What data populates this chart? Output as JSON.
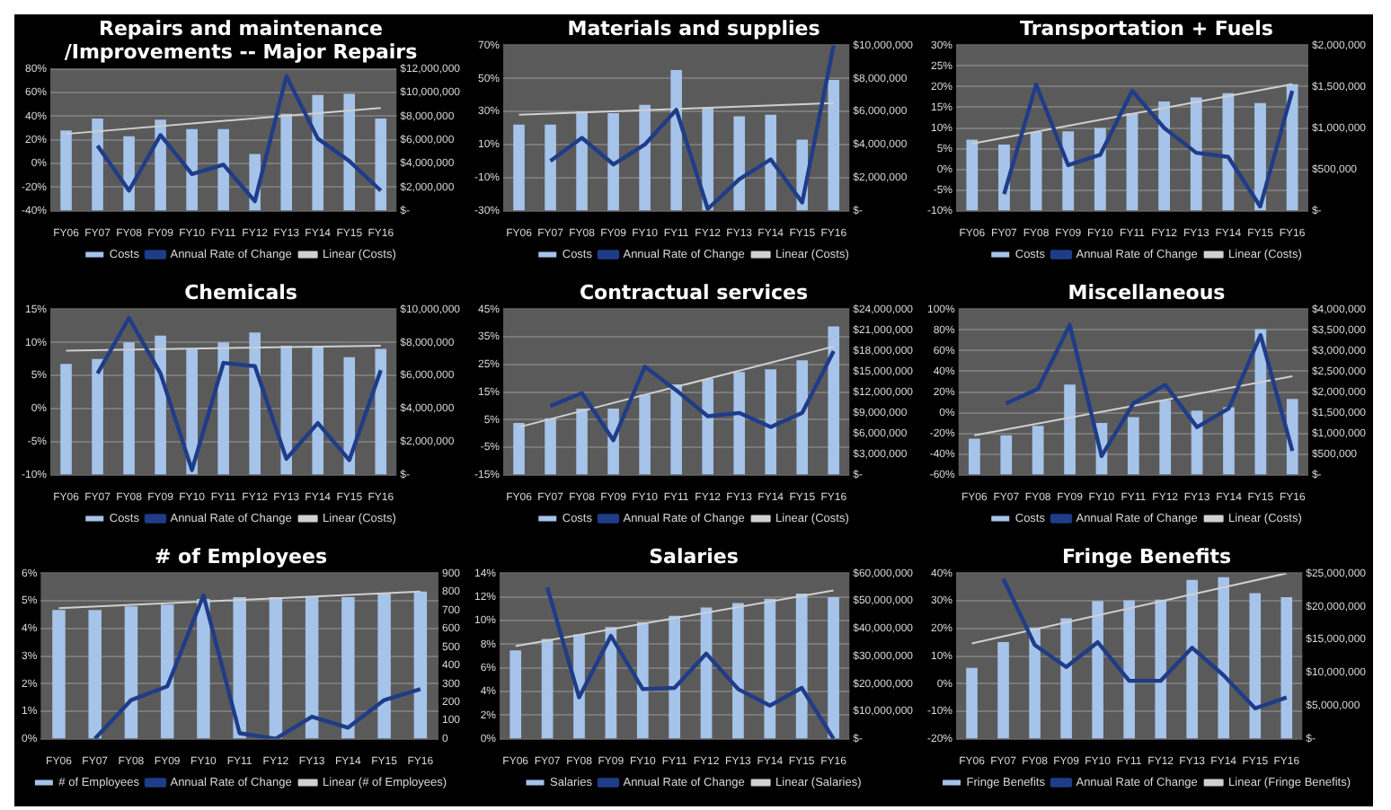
{
  "chart_data": [
    {
      "type": "bar",
      "title": "Repairs and maintenance\n/Improvements -- Major Repairs",
      "categories": [
        "FY06",
        "FY07",
        "FY08",
        "FY09",
        "FY10",
        "FY11",
        "FY12",
        "FY13",
        "FY14",
        "FY15",
        "FY16"
      ],
      "series": [
        {
          "name": "Costs",
          "axis": "y2",
          "color": "#a6c3ea",
          "values": [
            6800000,
            7800000,
            6300000,
            7700000,
            6900000,
            6900000,
            4800000,
            8200000,
            9800000,
            9900000,
            7800000
          ]
        },
        {
          "name": "Annual Rate of Change",
          "type": "line",
          "color": "#1f3c88",
          "values": [
            null,
            15,
            -23,
            24,
            -9,
            -1,
            -32,
            74,
            21,
            2,
            -23
          ]
        },
        {
          "name": "Linear (Costs)",
          "type": "line",
          "color": "#d0d0d0",
          "values": [
            6500000,
            null,
            null,
            null,
            null,
            null,
            null,
            null,
            null,
            null,
            8700000
          ],
          "axis": "y2"
        }
      ],
      "ylim": [
        -40,
        80
      ],
      "yticks": [
        {
          "value": -40,
          "label": "-40%"
        },
        {
          "value": -20,
          "label": "-20%"
        },
        {
          "value": 0,
          "label": "0%"
        },
        {
          "value": 20,
          "label": "20%"
        },
        {
          "value": 40,
          "label": "40%"
        },
        {
          "value": 60,
          "label": "60%"
        },
        {
          "value": 80,
          "label": "80%"
        }
      ],
      "y2lim": [
        0,
        12000000
      ],
      "y2ticks": [
        {
          "value": 0,
          "label": "$-"
        },
        {
          "value": 2000000,
          "label": "$2,000,000"
        },
        {
          "value": 4000000,
          "label": "$4,000,000"
        },
        {
          "value": 6000000,
          "label": "$6,000,000"
        },
        {
          "value": 8000000,
          "label": "$8,000,000"
        },
        {
          "value": 10000000,
          "label": "$10,000,000"
        },
        {
          "value": 12000000,
          "label": "$12,000,000"
        }
      ],
      "grid": "y",
      "legend": "bottom"
    },
    {
      "type": "bar",
      "title": "Materials and supplies",
      "categories": [
        "FY06",
        "FY07",
        "FY08",
        "FY09",
        "FY10",
        "FY11",
        "FY12",
        "FY13",
        "FY14",
        "FY15",
        "FY16"
      ],
      "series": [
        {
          "name": "Costs",
          "axis": "y2",
          "color": "#a6c3ea",
          "values": [
            5200000,
            5200000,
            6000000,
            5900000,
            6400000,
            8500000,
            6200000,
            5700000,
            5800000,
            4300000,
            7900000
          ]
        },
        {
          "name": "Annual Rate of Change",
          "type": "line",
          "color": "#1f3c88",
          "values": [
            null,
            0,
            14,
            -2,
            10,
            31,
            -29,
            -11,
            1,
            -25,
            70
          ]
        },
        {
          "name": "Linear (Costs)",
          "type": "line",
          "color": "#d0d0d0",
          "values": [
            5800000,
            null,
            null,
            null,
            null,
            null,
            null,
            null,
            null,
            null,
            6500000
          ],
          "axis": "y2"
        }
      ],
      "ylim": [
        -30,
        70
      ],
      "yticks": [
        {
          "value": -30,
          "label": "-30%"
        },
        {
          "value": -10,
          "label": "-10%"
        },
        {
          "value": 10,
          "label": "10%"
        },
        {
          "value": 30,
          "label": "30%"
        },
        {
          "value": 50,
          "label": "50%"
        },
        {
          "value": 70,
          "label": "70%"
        }
      ],
      "y2lim": [
        0,
        10000000
      ],
      "y2ticks": [
        {
          "value": 0,
          "label": "$-"
        },
        {
          "value": 2000000,
          "label": "$2,000,000"
        },
        {
          "value": 4000000,
          "label": "$4,000,000"
        },
        {
          "value": 6000000,
          "label": "$6,000,000"
        },
        {
          "value": 8000000,
          "label": "$8,000,000"
        },
        {
          "value": 10000000,
          "label": "$10,000,000"
        }
      ],
      "grid": "y",
      "legend": "bottom"
    },
    {
      "type": "bar",
      "title": "Transportation + Fuels",
      "categories": [
        "FY06",
        "FY07",
        "FY08",
        "FY09",
        "FY10",
        "FY11",
        "FY12",
        "FY13",
        "FY14",
        "FY15",
        "FY16"
      ],
      "series": [
        {
          "name": "Costs",
          "axis": "y2",
          "color": "#a6c3ea",
          "values": [
            860000,
            800000,
            950000,
            960000,
            1000000,
            1180000,
            1320000,
            1370000,
            1420000,
            1300000,
            1530000
          ]
        },
        {
          "name": "Annual Rate of Change",
          "type": "line",
          "color": "#1f3c88",
          "values": [
            null,
            -6,
            20.5,
            1,
            3.5,
            19,
            10,
            4,
            3,
            -9,
            19
          ]
        },
        {
          "name": "Linear (Costs)",
          "type": "line",
          "color": "#d0d0d0",
          "values": [
            810000,
            null,
            null,
            null,
            null,
            null,
            null,
            null,
            null,
            null,
            1530000
          ],
          "axis": "y2"
        }
      ],
      "ylim": [
        -10,
        30
      ],
      "yticks": [
        {
          "value": -10,
          "label": "-10%"
        },
        {
          "value": -5,
          "label": "-5%"
        },
        {
          "value": 0,
          "label": "0%"
        },
        {
          "value": 5,
          "label": "5%"
        },
        {
          "value": 10,
          "label": "10%"
        },
        {
          "value": 15,
          "label": "15%"
        },
        {
          "value": 20,
          "label": "20%"
        },
        {
          "value": 25,
          "label": "25%"
        },
        {
          "value": 30,
          "label": "30%"
        }
      ],
      "y2lim": [
        0,
        2000000
      ],
      "y2ticks": [
        {
          "value": 0,
          "label": "$-"
        },
        {
          "value": 500000,
          "label": "$500,000"
        },
        {
          "value": 1000000,
          "label": "$1,000,000"
        },
        {
          "value": 1500000,
          "label": "$1,500,000"
        },
        {
          "value": 2000000,
          "label": "$2,000,000"
        }
      ],
      "grid": "y",
      "legend": "bottom"
    },
    {
      "type": "bar",
      "title": "Chemicals",
      "categories": [
        "FY06",
        "FY07",
        "FY08",
        "FY09",
        "FY10",
        "FY11",
        "FY12",
        "FY13",
        "FY14",
        "FY15",
        "FY16"
      ],
      "series": [
        {
          "name": "Costs",
          "axis": "y2",
          "color": "#a6c3ea",
          "values": [
            6700000,
            7000000,
            8000000,
            8400000,
            7600000,
            8000000,
            8600000,
            7800000,
            7700000,
            7100000,
            7600000
          ]
        },
        {
          "name": "Annual Rate of Change",
          "type": "line",
          "color": "#1f3c88",
          "values": [
            null,
            5.3,
            13.7,
            5.3,
            -9.3,
            6.9,
            6.4,
            -7.6,
            -2.2,
            -7.8,
            5.8
          ]
        },
        {
          "name": "Linear (Costs)",
          "type": "line",
          "color": "#d0d0d0",
          "values": [
            7500000,
            null,
            null,
            null,
            null,
            null,
            null,
            null,
            null,
            null,
            7800000
          ],
          "axis": "y2"
        }
      ],
      "ylim": [
        -10,
        15
      ],
      "yticks": [
        {
          "value": -10,
          "label": "-10%"
        },
        {
          "value": -5,
          "label": "-5%"
        },
        {
          "value": 0,
          "label": "0%"
        },
        {
          "value": 5,
          "label": "5%"
        },
        {
          "value": 10,
          "label": "10%"
        },
        {
          "value": 15,
          "label": "15%"
        }
      ],
      "y2lim": [
        0,
        10000000
      ],
      "y2ticks": [
        {
          "value": 0,
          "label": "$-"
        },
        {
          "value": 2000000,
          "label": "$2,000,000"
        },
        {
          "value": 4000000,
          "label": "$4,000,000"
        },
        {
          "value": 6000000,
          "label": "$6,000,000"
        },
        {
          "value": 8000000,
          "label": "$8,000,000"
        },
        {
          "value": 10000000,
          "label": "$10,000,000"
        }
      ],
      "grid": "y",
      "legend": "bottom"
    },
    {
      "type": "bar",
      "title": "Contractual services",
      "categories": [
        "FY06",
        "FY07",
        "FY08",
        "FY09",
        "FY10",
        "FY11",
        "FY12",
        "FY13",
        "FY14",
        "FY15",
        "FY16"
      ],
      "series": [
        {
          "name": "Costs",
          "axis": "y2",
          "color": "#a6c3ea",
          "values": [
            7500000,
            8200000,
            9600000,
            9600000,
            11600000,
            13100000,
            13900000,
            14900000,
            15300000,
            16600000,
            21500000
          ]
        },
        {
          "name": "Annual Rate of Change",
          "type": "line",
          "color": "#1f3c88",
          "values": [
            null,
            9.9,
            14.6,
            -2.5,
            24.2,
            15.6,
            6.2,
            7.4,
            2.3,
            7.4,
            29.8
          ]
        },
        {
          "name": "Linear (Costs)",
          "type": "line",
          "color": "#d0d0d0",
          "values": [
            6900000,
            null,
            null,
            null,
            null,
            null,
            null,
            null,
            null,
            null,
            18600000
          ],
          "axis": "y2"
        }
      ],
      "ylim": [
        -15,
        45
      ],
      "yticks": [
        {
          "value": -15,
          "label": "-15%"
        },
        {
          "value": -5,
          "label": "-5%"
        },
        {
          "value": 5,
          "label": "5%"
        },
        {
          "value": 15,
          "label": "15%"
        },
        {
          "value": 25,
          "label": "25%"
        },
        {
          "value": 35,
          "label": "35%"
        },
        {
          "value": 45,
          "label": "45%"
        }
      ],
      "y2lim": [
        0,
        24000000
      ],
      "y2ticks": [
        {
          "value": 0,
          "label": "$-"
        },
        {
          "value": 3000000,
          "label": "$3,000,000"
        },
        {
          "value": 6000000,
          "label": "$6,000,000"
        },
        {
          "value": 9000000,
          "label": "$9,000,000"
        },
        {
          "value": 12000000,
          "label": "$12,000,000"
        },
        {
          "value": 15000000,
          "label": "$15,000,000"
        },
        {
          "value": 18000000,
          "label": "$18,000,000"
        },
        {
          "value": 21000000,
          "label": "$21,000,000"
        },
        {
          "value": 24000000,
          "label": "$24,000,000"
        }
      ],
      "grid": "y",
      "legend": "bottom"
    },
    {
      "type": "bar",
      "title": "Miscellaneous",
      "categories": [
        "FY06",
        "FY07",
        "FY08",
        "FY09",
        "FY10",
        "FY11",
        "FY12",
        "FY13",
        "FY14",
        "FY15",
        "FY16"
      ],
      "series": [
        {
          "name": "Costs",
          "axis": "y2",
          "color": "#a6c3ea",
          "values": [
            870000,
            950000,
            1180000,
            2180000,
            1250000,
            1390000,
            1800000,
            1550000,
            1630000,
            3520000,
            1830000
          ]
        },
        {
          "name": "Annual Rate of Change",
          "type": "line",
          "color": "#1f3c88",
          "values": [
            null,
            9,
            23,
            85,
            -42,
            9,
            27,
            -14,
            4,
            75,
            -37
          ]
        },
        {
          "name": "Linear (Costs)",
          "type": "line",
          "color": "#d0d0d0",
          "values": [
            950000,
            null,
            null,
            null,
            null,
            null,
            null,
            null,
            null,
            null,
            2380000
          ],
          "axis": "y2"
        }
      ],
      "ylim": [
        -60,
        100
      ],
      "yticks": [
        {
          "value": -60,
          "label": "-60%"
        },
        {
          "value": -40,
          "label": "-40%"
        },
        {
          "value": -20,
          "label": "-20%"
        },
        {
          "value": 0,
          "label": "0%"
        },
        {
          "value": 20,
          "label": "20%"
        },
        {
          "value": 40,
          "label": "40%"
        },
        {
          "value": 60,
          "label": "60%"
        },
        {
          "value": 80,
          "label": "80%"
        },
        {
          "value": 100,
          "label": "100%"
        }
      ],
      "y2lim": [
        0,
        4000000
      ],
      "y2ticks": [
        {
          "value": 0,
          "label": "$-"
        },
        {
          "value": 500000,
          "label": "$500,000"
        },
        {
          "value": 1000000,
          "label": "$1,000,000"
        },
        {
          "value": 1500000,
          "label": "$1,500,000"
        },
        {
          "value": 2000000,
          "label": "$2,000,000"
        },
        {
          "value": 2500000,
          "label": "$2,500,000"
        },
        {
          "value": 3000000,
          "label": "$3,000,000"
        },
        {
          "value": 3500000,
          "label": "$3,500,000"
        },
        {
          "value": 4000000,
          "label": "$4,000,000"
        }
      ],
      "grid": "y",
      "legend": "bottom"
    },
    {
      "type": "bar",
      "title": "# of Employees",
      "categories": [
        "FY06",
        "FY07",
        "FY08",
        "FY09",
        "FY10",
        "FY11",
        "FY12",
        "FY13",
        "FY14",
        "FY15",
        "FY16"
      ],
      "series": [
        {
          "name": "# of Employees",
          "axis": "y2",
          "color": "#a6c3ea",
          "values": [
            700,
            700,
            720,
            730,
            760,
            770,
            770,
            770,
            770,
            790,
            800
          ]
        },
        {
          "name": "Annual Rate of Change",
          "type": "line",
          "color": "#1f3c88",
          "values": [
            null,
            0,
            1.4,
            1.9,
            5.2,
            0.2,
            0,
            0.8,
            0.4,
            1.4,
            1.8
          ]
        },
        {
          "name": "Linear (# of Employees)",
          "type": "line",
          "color": "#d0d0d0",
          "values": [
            710,
            null,
            null,
            null,
            null,
            null,
            null,
            null,
            null,
            null,
            800
          ],
          "axis": "y2"
        }
      ],
      "ylim": [
        0,
        6
      ],
      "yticks": [
        {
          "value": 0,
          "label": "0%"
        },
        {
          "value": 1,
          "label": "1%"
        },
        {
          "value": 2,
          "label": "2%"
        },
        {
          "value": 3,
          "label": "3%"
        },
        {
          "value": 4,
          "label": "4%"
        },
        {
          "value": 5,
          "label": "5%"
        },
        {
          "value": 6,
          "label": "6%"
        }
      ],
      "y2lim": [
        0,
        900
      ],
      "y2ticks": [
        0,
        100,
        200,
        300,
        400,
        500,
        600,
        700,
        800,
        900
      ],
      "grid": "y",
      "legend": "bottom"
    },
    {
      "type": "bar",
      "title": "Salaries",
      "categories": [
        "FY06",
        "FY07",
        "FY08",
        "FY09",
        "FY10",
        "FY11",
        "FY12",
        "FY13",
        "FY14",
        "FY15",
        "FY16"
      ],
      "series": [
        {
          "name": "Salaries",
          "axis": "y2",
          "color": "#a6c3ea",
          "values": [
            32000000,
            36200000,
            37800000,
            40500000,
            42300000,
            44600000,
            47600000,
            49200000,
            50800000,
            52600000,
            51300000
          ]
        },
        {
          "name": "Annual Rate of Change",
          "type": "line",
          "color": "#1f3c88",
          "values": [
            null,
            12.8,
            3.5,
            8.7,
            4.2,
            4.3,
            7.2,
            4.2,
            2.8,
            4.3,
            0
          ]
        },
        {
          "name": "Linear (Salaries)",
          "type": "line",
          "color": "#d0d0d0",
          "values": [
            33600000,
            null,
            null,
            null,
            null,
            null,
            null,
            null,
            null,
            null,
            53800000
          ],
          "axis": "y2"
        }
      ],
      "ylim": [
        0,
        14
      ],
      "yticks": [
        {
          "value": 0,
          "label": "0%"
        },
        {
          "value": 2,
          "label": "2%"
        },
        {
          "value": 4,
          "label": "4%"
        },
        {
          "value": 6,
          "label": "6%"
        },
        {
          "value": 8,
          "label": "8%"
        },
        {
          "value": 10,
          "label": "10%"
        },
        {
          "value": 12,
          "label": "12%"
        },
        {
          "value": 14,
          "label": "14%"
        }
      ],
      "y2lim": [
        0,
        60000000
      ],
      "y2ticks": [
        {
          "value": 0,
          "label": "$-"
        },
        {
          "value": 10000000,
          "label": "$10,000,000"
        },
        {
          "value": 20000000,
          "label": "$20,000,000"
        },
        {
          "value": 30000000,
          "label": "$30,000,000"
        },
        {
          "value": 40000000,
          "label": "$40,000,000"
        },
        {
          "value": 50000000,
          "label": "$50,000,000"
        },
        {
          "value": 60000000,
          "label": "$60,000,000"
        }
      ],
      "grid": "y",
      "legend": "bottom"
    },
    {
      "type": "bar",
      "title": "Fringe Benefits",
      "categories": [
        "FY06",
        "FY07",
        "FY08",
        "FY09",
        "FY10",
        "FY11",
        "FY12",
        "FY13",
        "FY14",
        "FY15",
        "FY16"
      ],
      "series": [
        {
          "name": "Fringe Benefits",
          "axis": "y2",
          "color": "#a6c3ea",
          "values": [
            10700000,
            14600000,
            16800000,
            18200000,
            20800000,
            20900000,
            21000000,
            24000000,
            24400000,
            22000000,
            21400000
          ]
        },
        {
          "name": "Annual Rate of Change",
          "type": "line",
          "color": "#1f3c88",
          "values": [
            null,
            38,
            14,
            6,
            15,
            1,
            1,
            13,
            3,
            -9,
            -5
          ]
        },
        {
          "name": "Linear (Fringe Benefits)",
          "type": "line",
          "color": "#d0d0d0",
          "values": [
            14400000,
            null,
            null,
            null,
            null,
            null,
            null,
            null,
            null,
            null,
            25000000
          ],
          "axis": "y2"
        }
      ],
      "ylim": [
        -20,
        40
      ],
      "yticks": [
        {
          "value": -20,
          "label": "-20%"
        },
        {
          "value": -10,
          "label": "-10%"
        },
        {
          "value": 0,
          "label": "0%"
        },
        {
          "value": 10,
          "label": "10%"
        },
        {
          "value": 20,
          "label": "20%"
        },
        {
          "value": 30,
          "label": "30%"
        },
        {
          "value": 40,
          "label": "40%"
        }
      ],
      "y2lim": [
        0,
        25000000
      ],
      "y2ticks": [
        {
          "value": 0,
          "label": "$-"
        },
        {
          "value": 5000000,
          "label": "$5,000,000"
        },
        {
          "value": 10000000,
          "label": "$10,000,000"
        },
        {
          "value": 15000000,
          "label": "$15,000,000"
        },
        {
          "value": 20000000,
          "label": "$20,000,000"
        },
        {
          "value": 25000000,
          "label": "$25,000,000"
        }
      ],
      "grid": "y",
      "legend": "bottom"
    }
  ]
}
